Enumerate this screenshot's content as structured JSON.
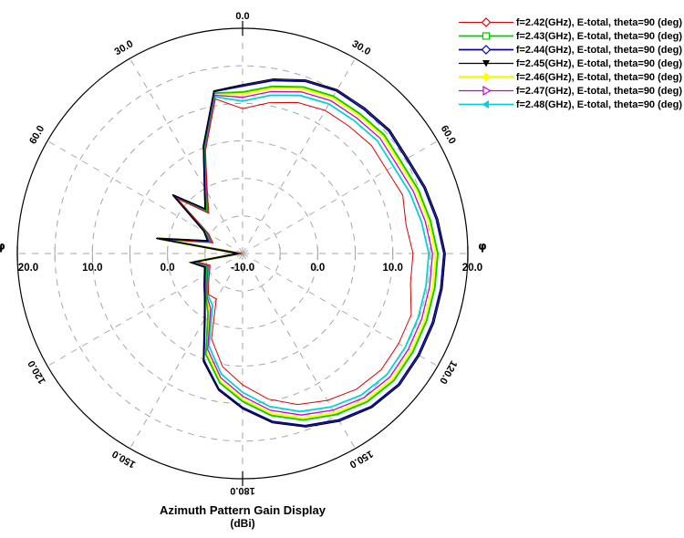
{
  "chart_data": {
    "type": "line",
    "polar": true,
    "title": "Azimuth Pattern Gain Display",
    "subtitle": "(dBi)",
    "legend_position": "top-right",
    "grid": true,
    "grid_color": "#a6a6a6",
    "axis_color": "#000000",
    "background_color": "#ffffff",
    "radial_axis": {
      "unit": "dBi",
      "min": -10,
      "max": 20,
      "ring_step": 5,
      "label_step": 10,
      "labels": [
        {
          "pos_db": -30,
          "text": "20.0"
        },
        {
          "pos_db": -20,
          "text": "10.0"
        },
        {
          "pos_db": -10,
          "text": "0.0"
        },
        {
          "pos_db": 0,
          "text": "-10.0"
        },
        {
          "pos_db": 10,
          "text": "0.0"
        },
        {
          "pos_db": 20,
          "text": "10.0"
        },
        {
          "pos_db": 30,
          "text": "20.0"
        }
      ],
      "phi_symbol": "φ"
    },
    "angular_axis": {
      "unit": "deg",
      "zero_position": "top",
      "direction": "clockwise",
      "spoke_step_deg": 30,
      "labels": [
        {
          "angle": 0,
          "text": "0.0"
        },
        {
          "angle": 30,
          "text": "30.0"
        },
        {
          "angle": 60,
          "text": "60.0"
        },
        {
          "angle": 120,
          "text": "120.0"
        },
        {
          "angle": 150,
          "text": "150.0"
        },
        {
          "angle": 180,
          "text": "180.0"
        },
        {
          "angle": 210,
          "text": "150.0"
        },
        {
          "angle": 240,
          "text": "120.0"
        },
        {
          "angle": 300,
          "text": "60.0"
        },
        {
          "angle": 330,
          "text": "30.0"
        }
      ]
    },
    "angles_deg": [
      0,
      10,
      20,
      30,
      40,
      50,
      60,
      70,
      80,
      90,
      100,
      110,
      120,
      130,
      140,
      150,
      160,
      170,
      180,
      190,
      200,
      210,
      220,
      230,
      240,
      250,
      260,
      270,
      280,
      290,
      300,
      310,
      320,
      330,
      340,
      350
    ],
    "series": [
      {
        "name": "f=2.42(GHz)",
        "label": "f=2.42(GHz), E-total, theta=90 (deg)",
        "color": "#dd0000",
        "marker": "diamond-open",
        "line_width": 1,
        "values": [
          9.3,
          10.4,
          11.4,
          12.0,
          12.1,
          12.4,
          12.2,
          12.7,
          12.1,
          12.7,
          12.7,
          13.9,
          14.0,
          14.1,
          13.6,
          12.6,
          11.4,
          9.7,
          7.5,
          5.3,
          2.1,
          -3.0,
          -2.9,
          -4.1,
          -4.9,
          -5.4,
          -3.8,
          -9.9,
          0.9,
          -5.8,
          -4.8,
          1.4,
          -3.0,
          -0.6,
          4.5,
          10.9
        ]
      },
      {
        "name": "f=2.43(GHz)",
        "label": "f=2.43(GHz), E-total, theta=90 (deg)",
        "color": "#00cc00",
        "marker": "square-open",
        "line_width": 1.8,
        "values": [
          11.5,
          12.6,
          13.6,
          14.2,
          14.3,
          14.6,
          14.4,
          14.9,
          15.4,
          16.0,
          16.0,
          16.1,
          16.2,
          16.3,
          15.8,
          14.8,
          13.6,
          11.9,
          9.7,
          7.5,
          4.3,
          -0.8,
          -2.4,
          -3.6,
          -4.4,
          -4.9,
          -3.3,
          -9.5,
          1.4,
          -5.3,
          -4.3,
          1.9,
          -2.5,
          -0.1,
          5.0,
          11.7
        ]
      },
      {
        "name": "f=2.44(GHz)",
        "label": "f=2.44(GHz), E-total, theta=90 (deg)",
        "color": "#0000a0",
        "marker": "diamond-open",
        "line_width": 1.8,
        "values": [
          12.3,
          13.4,
          14.4,
          15.0,
          15.1,
          15.4,
          15.2,
          15.7,
          16.2,
          16.8,
          16.8,
          16.9,
          17.0,
          17.1,
          16.6,
          15.6,
          14.4,
          12.7,
          10.5,
          8.3,
          5.1,
          0.0,
          -2.2,
          -3.4,
          -4.2,
          -4.7,
          -3.1,
          -9.4,
          1.6,
          -5.1,
          -4.1,
          2.1,
          -2.3,
          0.1,
          5.2,
          11.9
        ]
      },
      {
        "name": "f=2.45(GHz)",
        "label": "f=2.45(GHz), E-total, theta=90 (deg)",
        "color": "#000000",
        "marker": "triangle-down-filled",
        "line_width": 1.2,
        "values": [
          12.5,
          13.6,
          14.6,
          15.2,
          15.3,
          15.6,
          15.4,
          15.9,
          16.4,
          17.0,
          17.0,
          17.1,
          17.2,
          17.3,
          16.8,
          15.8,
          14.6,
          12.9,
          10.7,
          8.5,
          5.3,
          0.2,
          -2.1,
          -3.3,
          -4.1,
          -4.6,
          -3.0,
          -9.3,
          1.7,
          -5.0,
          -4.0,
          2.2,
          -2.2,
          0.2,
          5.3,
          12.0
        ]
      },
      {
        "name": "f=2.46(GHz)",
        "label": "f=2.46(GHz), E-total, theta=90 (deg)",
        "color": "#ffff00",
        "marker": "diamond-filled",
        "line_width": 3,
        "values": [
          11.3,
          12.4,
          13.4,
          14.0,
          14.1,
          14.4,
          14.2,
          14.7,
          15.2,
          15.8,
          15.8,
          15.9,
          16.0,
          16.1,
          15.6,
          14.6,
          13.4,
          11.7,
          9.5,
          7.3,
          4.1,
          -1.0,
          -2.5,
          -3.7,
          -4.5,
          -5.0,
          -3.4,
          -9.6,
          1.3,
          -5.4,
          -4.4,
          1.8,
          -2.6,
          -0.2,
          4.9,
          11.6
        ]
      },
      {
        "name": "f=2.47(GHz)",
        "label": "f=2.47(GHz), E-total, theta=90 (deg)",
        "color": "#cc00cc",
        "marker": "triangle-right-open",
        "line_width": 1.3,
        "values": [
          10.8,
          11.9,
          12.9,
          13.5,
          13.6,
          13.9,
          13.7,
          14.2,
          14.7,
          15.3,
          15.3,
          15.4,
          15.5,
          15.6,
          15.1,
          14.1,
          12.9,
          11.2,
          9.0,
          6.8,
          3.6,
          -1.5,
          -2.6,
          -3.8,
          -4.6,
          -5.1,
          -3.5,
          -9.7,
          1.2,
          -5.5,
          -4.5,
          1.7,
          -2.7,
          -0.3,
          4.8,
          11.4
        ]
      },
      {
        "name": "f=2.48(GHz)",
        "label": "f=2.48(GHz), E-total, theta=90 (deg)",
        "color": "#00d5d5",
        "marker": "triangle-left-filled",
        "line_width": 1.8,
        "values": [
          10.3,
          11.4,
          12.4,
          13.0,
          13.1,
          13.4,
          13.2,
          13.7,
          14.2,
          14.8,
          14.8,
          14.9,
          15.0,
          15.1,
          14.6,
          13.6,
          12.4,
          10.7,
          8.5,
          6.3,
          3.1,
          -2.0,
          -2.8,
          -4.0,
          -4.8,
          -5.3,
          -3.7,
          -9.8,
          1.1,
          -5.7,
          -4.7,
          1.6,
          -2.9,
          -0.5,
          4.6,
          11.2
        ]
      }
    ]
  }
}
